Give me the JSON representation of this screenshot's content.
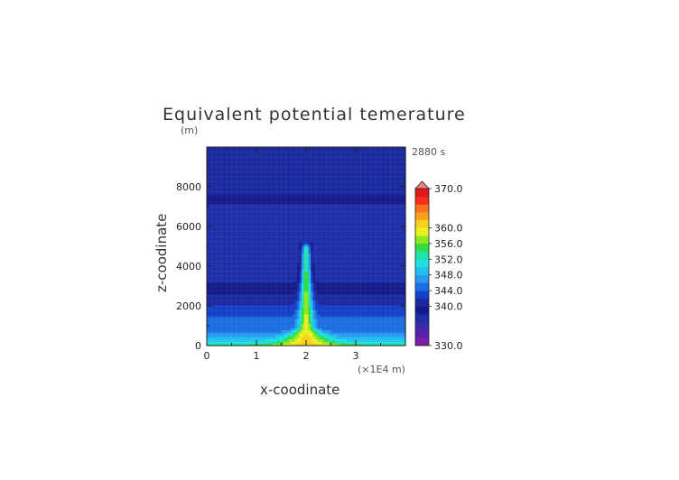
{
  "chart_data": {
    "type": "heatmap",
    "title": "Equivalent potential temerature",
    "xlabel": "x-coodinate",
    "ylabel": "z-coodinate",
    "x_unit": "(×1E4 m)",
    "y_unit": "(m)",
    "time_label": "2880 s",
    "xlim": [
      0,
      4
    ],
    "ylim": [
      0,
      10000
    ],
    "x_ticks": [
      "0",
      "1",
      "2",
      "3"
    ],
    "x_tick_values": [
      0,
      1,
      2,
      3
    ],
    "y_ticks": [
      "0",
      "2000",
      "4000",
      "6000",
      "8000"
    ],
    "y_tick_values": [
      0,
      2000,
      4000,
      6000,
      8000
    ],
    "colorbar": {
      "min": 330,
      "max": 370,
      "step": 2,
      "tick_values": [
        330,
        340,
        344,
        348,
        352,
        356,
        360,
        370
      ],
      "tick_labels": [
        "330.0",
        "340.0",
        "344.0",
        "348.0",
        "352.0",
        "356.0",
        "360.0",
        "370.0"
      ],
      "colors": [
        "#7a1fa8",
        "#5a1fb0",
        "#3a2aa8",
        "#1e2ea8",
        "#151a8a",
        "#1a2a9e",
        "#1540c8",
        "#1a6ee0",
        "#2a98f0",
        "#22c0f0",
        "#20e0e0",
        "#20e0b0",
        "#30dc40",
        "#8ee820",
        "#e8f020",
        "#f8d020",
        "#f8a020",
        "#f87020",
        "#f03020",
        "#e01818"
      ],
      "extend_color": "#f08080"
    },
    "field_description": {
      "background_by_height": [
        {
          "z": 0,
          "value": 356
        },
        {
          "z": 100,
          "value": 352
        },
        {
          "z": 300,
          "value": 349
        },
        {
          "z": 700,
          "value": 346
        },
        {
          "z": 1300,
          "value": 344.5
        },
        {
          "z": 1800,
          "value": 343
        },
        {
          "z": 2300,
          "value": 341
        },
        {
          "z": 2700,
          "value": 339.5
        },
        {
          "z": 3500,
          "value": 337
        },
        {
          "z": 7000,
          "value": 337
        },
        {
          "z": 7400,
          "value": 339.5
        },
        {
          "z": 8200,
          "value": 341
        },
        {
          "z": 10000,
          "value": 342
        }
      ],
      "plume_center_x": 2.0,
      "plume_top_z": 4900,
      "plume_base_value": 361,
      "plume_core_value": 356
    }
  }
}
